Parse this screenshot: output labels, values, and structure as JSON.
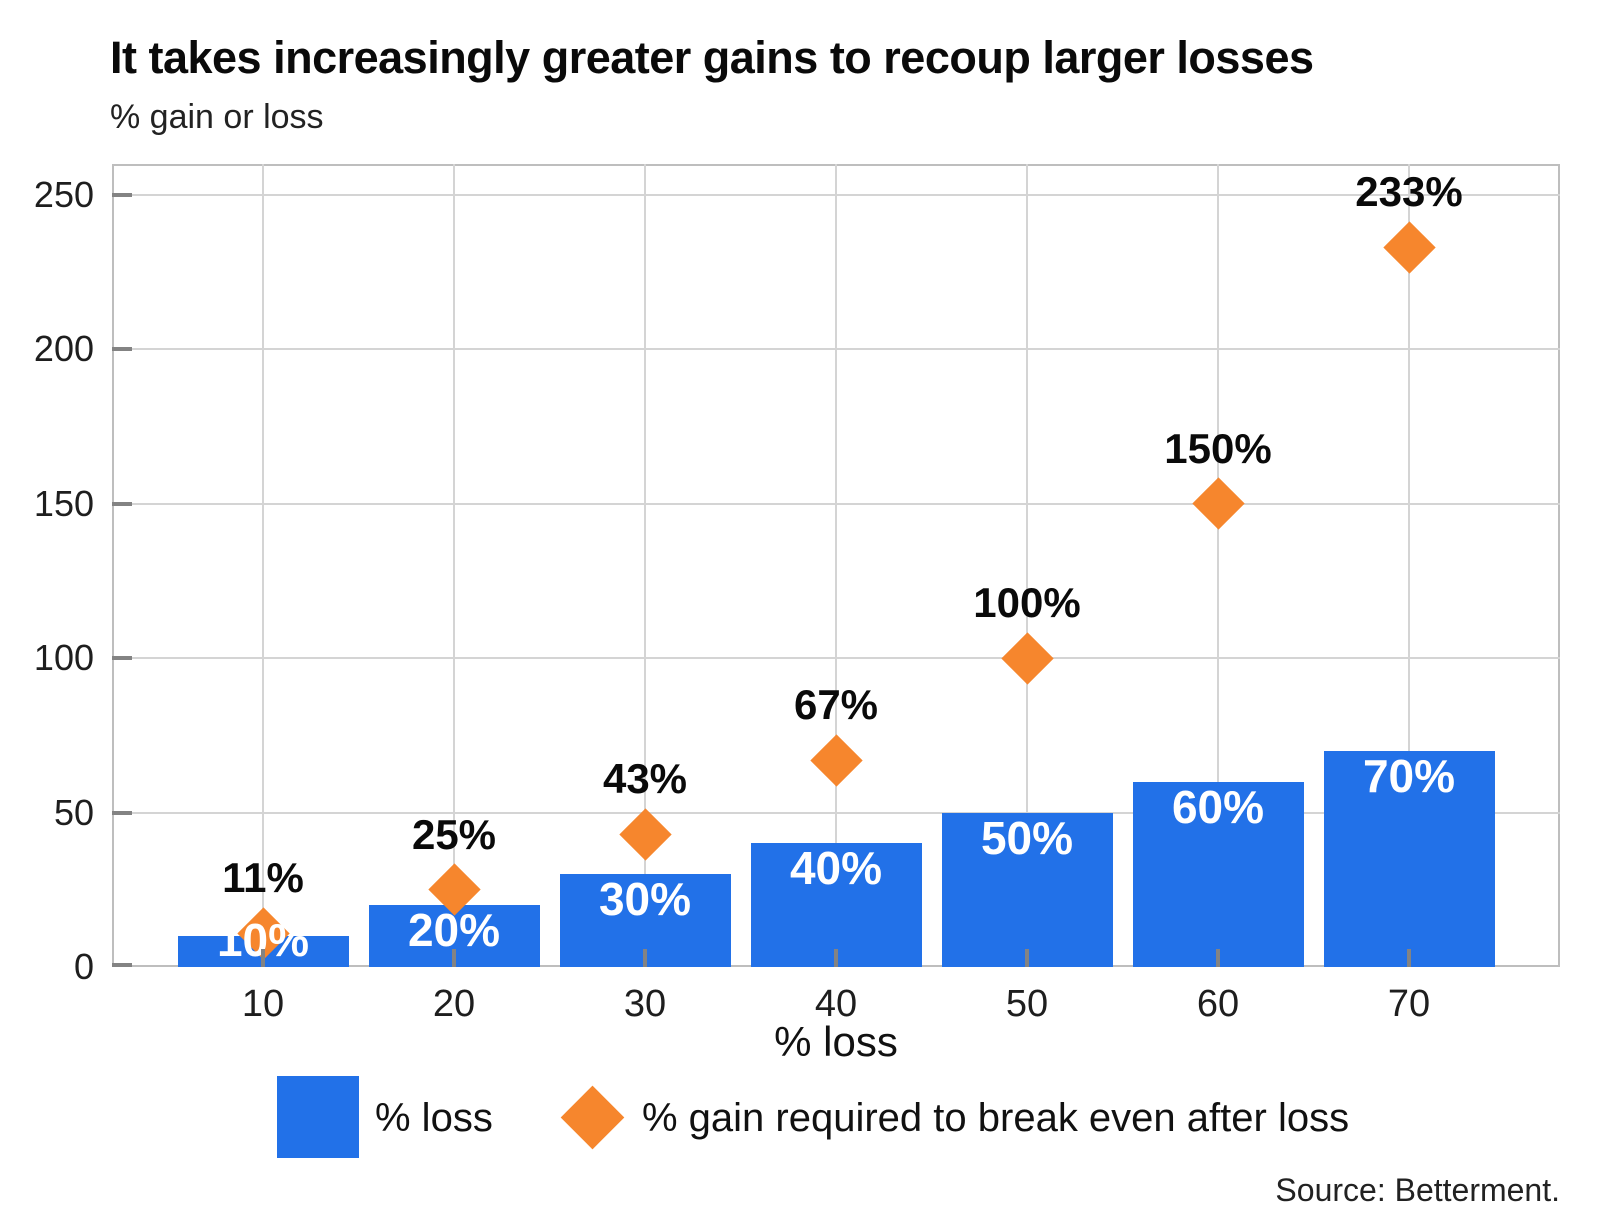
{
  "header": {
    "title": "It takes increasingly greater gains to recoup larger losses",
    "subtitle": "% gain or loss"
  },
  "chart_data": {
    "type": "bar",
    "categories": [
      10,
      20,
      30,
      40,
      50,
      60,
      70
    ],
    "series": [
      {
        "name": "% loss",
        "marker": "square",
        "color": "#2271E8",
        "values": [
          10,
          20,
          30,
          40,
          50,
          60,
          70
        ],
        "labels": [
          "10%",
          "20%",
          "30%",
          "40%",
          "50%",
          "60%",
          "70%"
        ],
        "label_color": "#ffffff"
      },
      {
        "name": "% gain required to break even after loss",
        "marker": "diamond",
        "color": "#F6862D",
        "values": [
          11,
          25,
          43,
          67,
          100,
          150,
          233
        ],
        "labels": [
          "11%",
          "25%",
          "43%",
          "67%",
          "100%",
          "150%",
          "233%"
        ],
        "label_color": "#0a0a0a"
      }
    ],
    "xlabel": "% loss",
    "ylabel": "% gain or loss",
    "y_ticks": [
      0,
      50,
      100,
      150,
      200,
      250
    ],
    "ylim": [
      0,
      260
    ],
    "grid": true,
    "legend_position": "bottom"
  },
  "legend": {
    "items": [
      {
        "label": "% loss",
        "marker": "square",
        "color": "#2271E8"
      },
      {
        "label": "% gain required to break even after loss",
        "marker": "diamond",
        "color": "#F6862D"
      }
    ]
  },
  "source": "Source: Betterment.",
  "colors": {
    "bar": "#2271E8",
    "diamond": "#F6862D",
    "grid": "#d4d4d4",
    "plot_border": "#bebebe",
    "axis_tick": "#838383",
    "text": "#1e1e1e"
  }
}
